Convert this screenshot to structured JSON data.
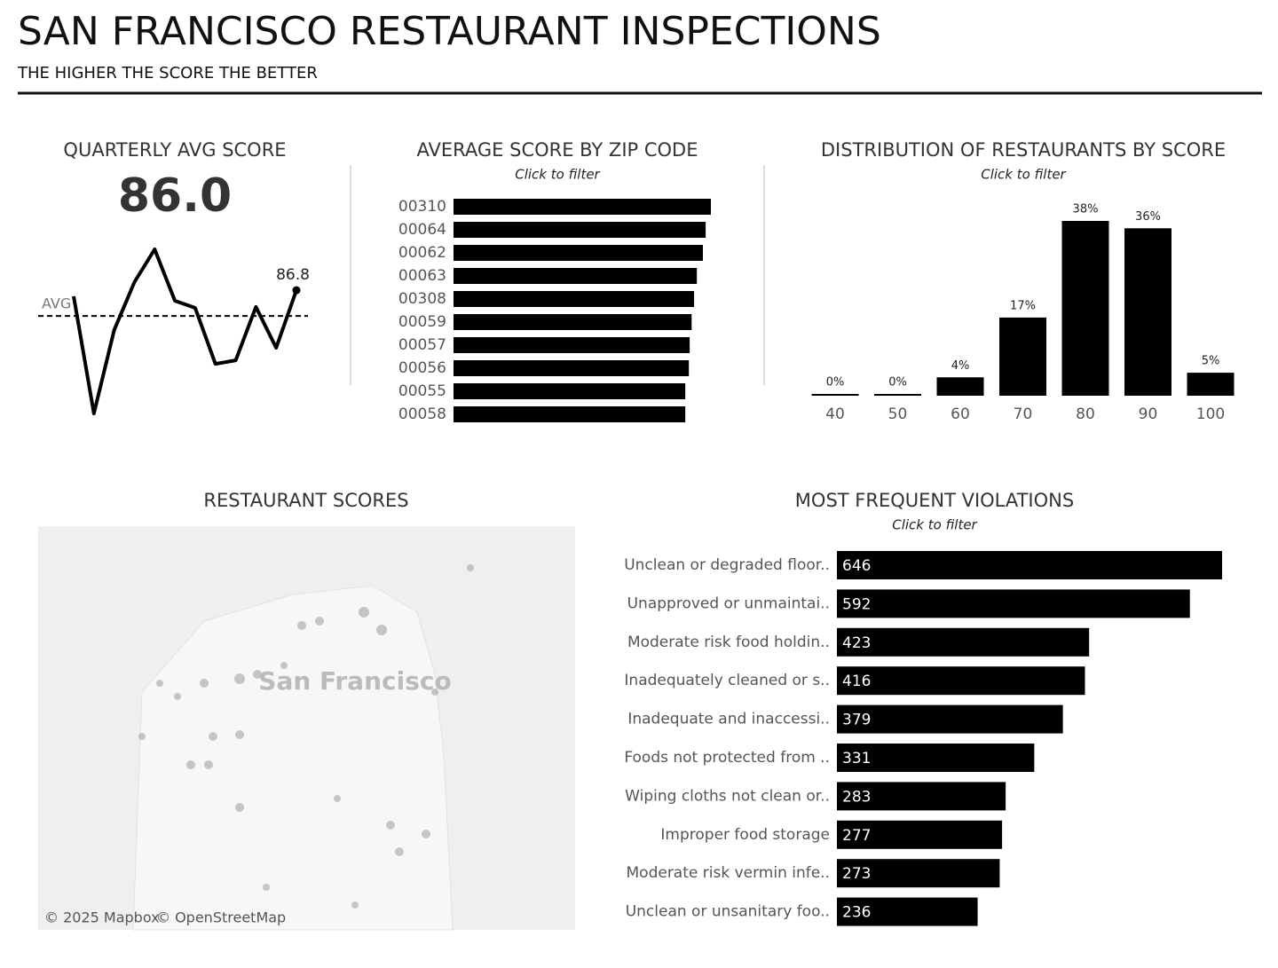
{
  "header": {
    "title": "SAN FRANCISCO RESTAURANT INSPECTIONS",
    "subtitle": "THE HIGHER THE SCORE THE BETTER"
  },
  "chart_data": [
    {
      "type": "line",
      "title": "QUARTERLY AVG SCORE",
      "kpi_label": "86.0",
      "average": 86.0,
      "reference_label": "AVG",
      "values": [
        86.61,
        82.97,
        85.56,
        87.05,
        88.07,
        86.47,
        86.25,
        84.51,
        84.62,
        86.28,
        85.01,
        86.8
      ],
      "value_labels": [
        null,
        null,
        null,
        null,
        null,
        null,
        null,
        null,
        null,
        null,
        null,
        "86.8"
      ],
      "color": "#000000"
    },
    {
      "type": "hbar",
      "title": "AVERAGE SCORE BY ZIP CODE",
      "subtitle": "Click to filter",
      "categories": [
        "00310",
        "00064",
        "00062",
        "00063",
        "00308",
        "00059",
        "00057",
        "00056",
        "00055",
        "00058"
      ],
      "values": [
        93.5,
        91.6,
        90.6,
        88.4,
        87.4,
        86.5,
        85.8,
        85.5,
        84.2,
        84.2
      ],
      "color": "#000000"
    },
    {
      "type": "bar",
      "title": "DISTRIBUTION OF RESTAURANTS BY SCORE",
      "subtitle": "Click to filter",
      "categories": [
        "40",
        "50",
        "60",
        "70",
        "80",
        "90",
        "100"
      ],
      "values": [
        0,
        0,
        4,
        17,
        38,
        36.4,
        5
      ],
      "value_labels": [
        "0%",
        "0%",
        "4%",
        "17%",
        "38%",
        "36%",
        "5%"
      ],
      "color": "#000000"
    },
    {
      "type": "map",
      "title": "RESTAURANT SCORES",
      "place_label": "San Francisco",
      "attribution": [
        "© 2025 Mapbox",
        "© OpenStreetMap"
      ]
    },
    {
      "type": "hbar",
      "title": "MOST FREQUENT VIOLATIONS",
      "subtitle": "Click to filter",
      "categories": [
        "Unclean or degraded floor..",
        "Unapproved or unmaintai..",
        "Moderate risk food holdin..",
        "Inadequately cleaned or s..",
        "Inadequate and inaccessi..",
        "Foods not protected from ..",
        "Wiping cloths not clean or..",
        "Improper food storage",
        "Moderate risk vermin infe..",
        "Unclean or unsanitary foo.."
      ],
      "values": [
        646,
        592,
        423,
        416,
        379,
        331,
        283,
        277,
        273,
        236
      ],
      "labels_inside": true,
      "color": "#000000"
    }
  ]
}
